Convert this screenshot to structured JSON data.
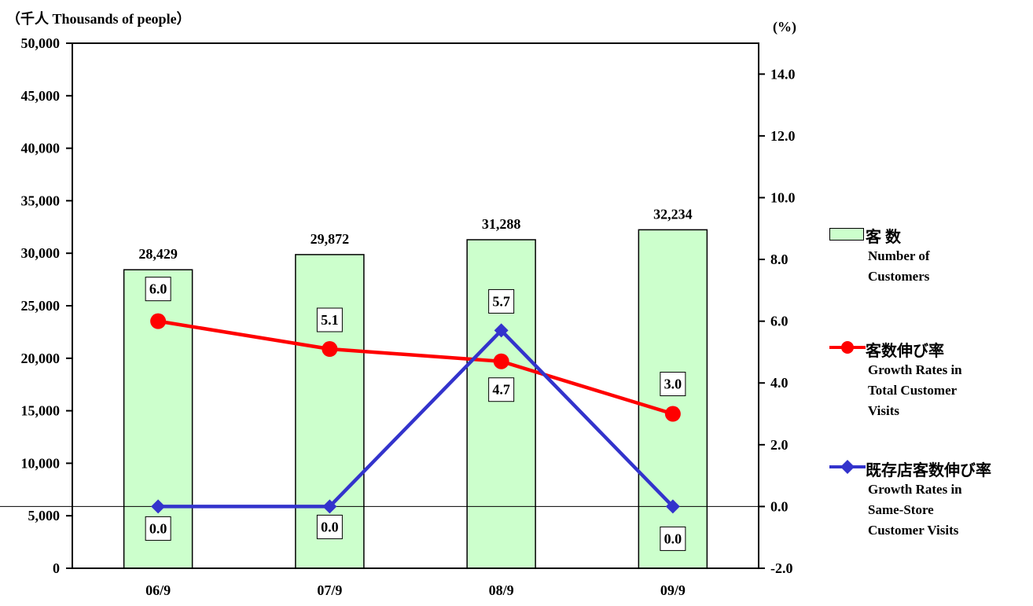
{
  "chart_data": {
    "type": "bar+line",
    "y_left_unit_label": "（千人 Thousands of people）",
    "y_right_unit_label": "(%)",
    "categories": [
      "06/9",
      "07/9",
      "08/9",
      "09/9"
    ],
    "y_left_ticks": [
      "0",
      "5,000",
      "10,000",
      "15,000",
      "20,000",
      "25,000",
      "30,000",
      "35,000",
      "40,000",
      "45,000",
      "50,000"
    ],
    "y_right_ticks": [
      "-2.0",
      "0.0",
      "2.0",
      "4.0",
      "6.0",
      "8.0",
      "10.0",
      "12.0",
      "14.0"
    ],
    "y_left_range": [
      0,
      50000
    ],
    "y_right_range": [
      -2.0,
      15.0
    ],
    "bars": {
      "name": "客 数",
      "name_en": "Number of Customers",
      "color": "#ccffcc",
      "values": [
        28429,
        29872,
        31288,
        32234
      ],
      "labels": [
        "28,429",
        "29,872",
        "31,288",
        "32,234"
      ]
    },
    "series": [
      {
        "name": "客数伸び率",
        "name_en": "Growth Rates in Total Customer Visits",
        "color": "#ff0000",
        "marker": "circle",
        "values": [
          6.0,
          5.1,
          4.7,
          3.0
        ],
        "labels": [
          "6.0",
          "5.1",
          "4.7",
          "3.0"
        ]
      },
      {
        "name": "既存店客数伸び率",
        "name_en": "Growth Rates in Same-Store Customer Visits",
        "color": "#3333cc",
        "marker": "diamond",
        "values": [
          0.0,
          0.0,
          5.7,
          0.0
        ],
        "labels": [
          "0.0",
          "0.0",
          "5.7",
          "0.0"
        ]
      }
    ],
    "legend_position": "right"
  },
  "legend": {
    "bars_jp": "客 数",
    "bars_en_lines": [
      "Number of",
      "Customers"
    ],
    "red_jp": "客数伸び率",
    "red_en_lines": [
      "Growth Rates in",
      "Total Customer",
      "Visits"
    ],
    "blue_jp": "既存店客数伸び率",
    "blue_en_lines": [
      "Growth Rates in",
      "Same-Store",
      "Customer Visits"
    ]
  }
}
